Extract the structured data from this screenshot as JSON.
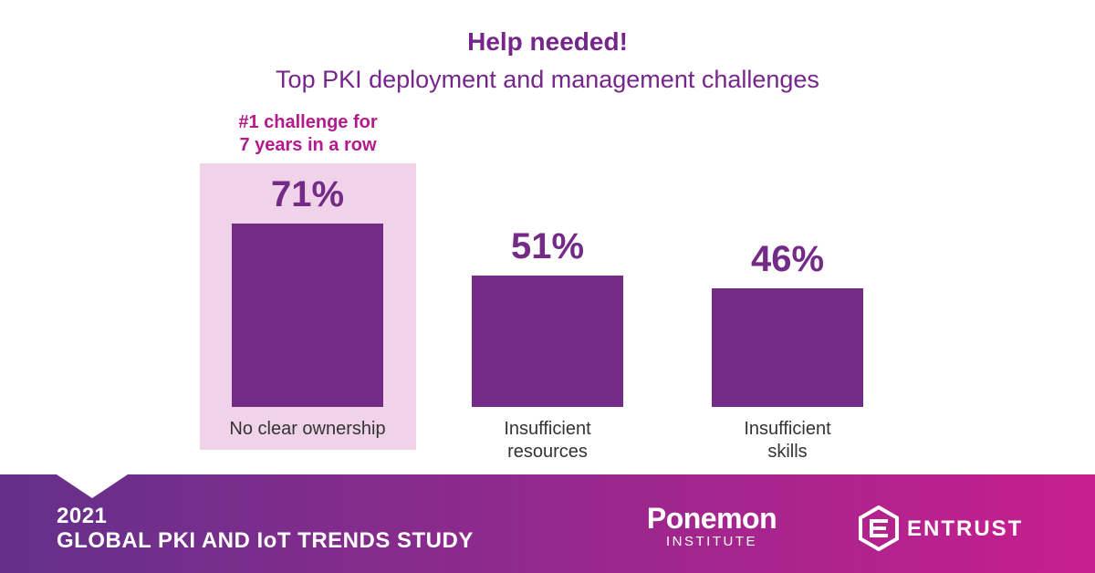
{
  "chart_data": {
    "type": "bar",
    "title": "Help needed!",
    "subtitle": "Top PKI deployment and management challenges",
    "categories": [
      [
        "No clear ownership"
      ],
      [
        "Insufficient",
        "resources"
      ],
      [
        "Insufficient",
        "skills"
      ]
    ],
    "values": [
      71,
      51,
      46
    ],
    "value_labels": [
      "71%",
      "51%",
      "46%"
    ],
    "unit": "%",
    "ylim": [
      0,
      100
    ],
    "highlight": {
      "index": 0,
      "annotation": [
        "#1 challenge for",
        "7 years in a row"
      ]
    },
    "colors": {
      "bar": "#742a87",
      "highlight_bg": "#f0d3e8",
      "annotation": "#b5198c"
    }
  },
  "footer": {
    "study_line1": "2021",
    "study_line2": "GLOBAL PKI AND IoT TRENDS STUDY",
    "ponemon_name": "Ponemon",
    "ponemon_sub": "INSTITUTE",
    "entrust_name": "ENTRUST",
    "icon": "entrust-hexagon-icon"
  }
}
